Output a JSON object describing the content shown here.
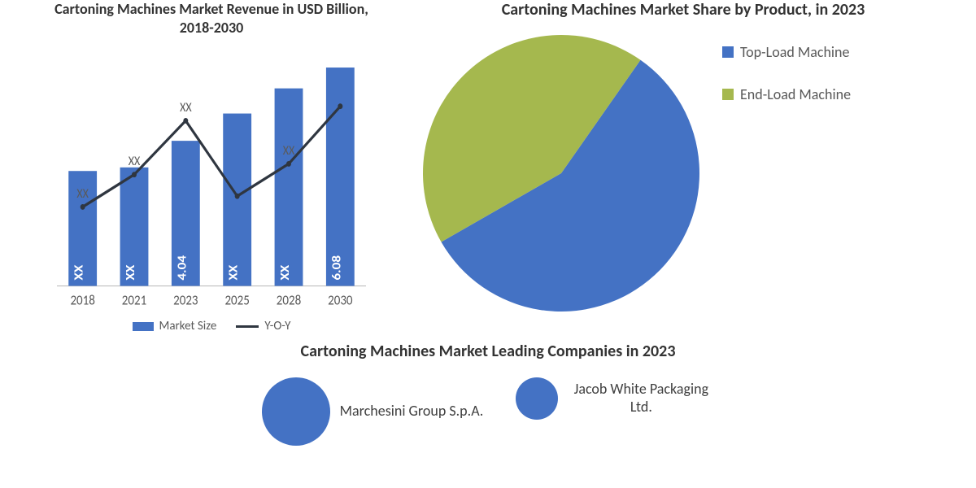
{
  "bar_chart": {
    "type": "bar+line",
    "title": "Cartoning Machines Market Revenue in USD Billion, 2018-2030",
    "title_fontsize": 18,
    "title_color": "#333333",
    "categories": [
      "2018",
      "2021",
      "2023",
      "2025",
      "2028",
      "2030"
    ],
    "bar_values": [
      3.2,
      3.3,
      4.04,
      4.8,
      5.5,
      6.08
    ],
    "bar_labels": [
      "XX",
      "XX",
      "4.04",
      "XX",
      "XX",
      "6.08"
    ],
    "bar_label_color": "#ffffff",
    "bar_label_fontsize": 15,
    "bar_color": "#4472c4",
    "bar_width": 0.55,
    "line_values": [
      2.2,
      3.1,
      4.6,
      2.5,
      3.4,
      5.0
    ],
    "line_point_labels": [
      "XX",
      "XX",
      "XX",
      "",
      "XX",
      ""
    ],
    "line_label_color": "#5a5a5a",
    "line_label_fontsize": 14,
    "line_color": "#2f3640",
    "line_width": 3,
    "ylim": [
      0,
      6.5
    ],
    "background_color": "#ffffff",
    "axis_color": "#bfbfbf",
    "tick_color": "#595959",
    "tick_fontsize": 15,
    "legend": {
      "items": [
        {
          "label": "Market Size",
          "type": "rect",
          "color": "#4472c4"
        },
        {
          "label": "Y-O-Y",
          "type": "line",
          "color": "#2f3640"
        }
      ],
      "fontsize": 15,
      "color": "#595959"
    }
  },
  "pie_chart": {
    "type": "pie",
    "title": "Cartoning Machines Market Share by Product, in 2023",
    "title_fontsize": 20,
    "title_color": "#333333",
    "slices": [
      {
        "label": "Top-Load Machine",
        "value": 57,
        "color": "#4472c4"
      },
      {
        "label": "End-Load Machine",
        "value": 43,
        "color": "#a5b84e"
      }
    ],
    "start_angle": 35,
    "legend_fontsize": 18,
    "legend_color": "#595959",
    "background_color": "#ffffff"
  },
  "companies": {
    "title": "Cartoning Machines Market Leading Companies in 2023",
    "title_fontsize": 20,
    "title_color": "#333333",
    "bubbles": [
      {
        "label": "Marchesini Group S.p.A.",
        "size": 84,
        "color": "#4472c4"
      },
      {
        "label": "Jacob White Packaging Ltd.",
        "size": 52,
        "color": "#4472c4"
      }
    ],
    "label_fontsize": 18,
    "label_color": "#404040"
  }
}
